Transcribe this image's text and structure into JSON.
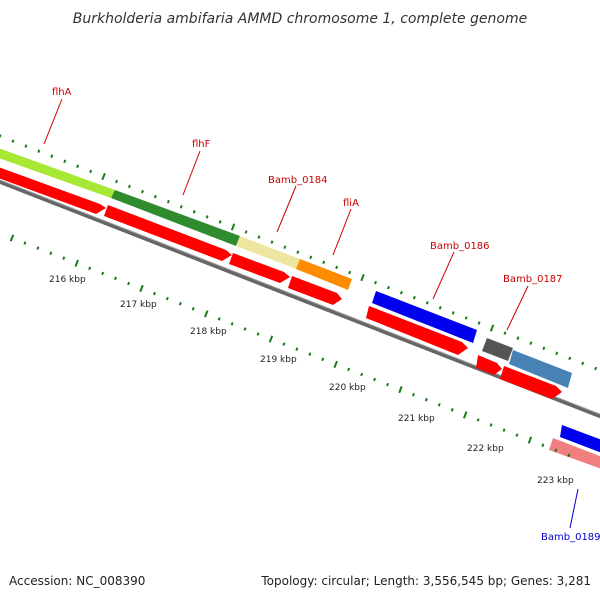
{
  "title": "Burkholderia ambifaria AMMD chromosome 1, complete genome",
  "footer": {
    "accession": "Accession: NC_008390",
    "summary": "Topology: circular; Length: 3,556,545 bp; Genes: 3,281"
  },
  "colors": {
    "forward_cds": "#ff0000",
    "backbone": "#777777",
    "tick_major": "#1a7a1a",
    "tick_minor": "#1a8a1a",
    "label_red": "#cc0000",
    "label_blue": "#0000cc"
  },
  "gene_labels": [
    {
      "id": "flhA",
      "text": "flhA",
      "color": "#cc0000"
    },
    {
      "id": "flhF",
      "text": "flhF",
      "color": "#cc0000"
    },
    {
      "id": "bamb-0184",
      "text": "Bamb_0184",
      "color": "#cc0000"
    },
    {
      "id": "flia",
      "text": "fliA",
      "color": "#cc0000"
    },
    {
      "id": "bamb-0186",
      "text": "Bamb_0186",
      "color": "#cc0000"
    },
    {
      "id": "bamb-0187",
      "text": "Bamb_0187",
      "color": "#cc0000"
    },
    {
      "id": "bamb-0189",
      "text": "Bamb_0189",
      "color": "#0000cc"
    }
  ],
  "tick_labels": [
    "216 kbp",
    "217 kbp",
    "218 kbp",
    "219 kbp",
    "220 kbp",
    "221 kbp",
    "222 kbp",
    "223 kbp"
  ]
}
